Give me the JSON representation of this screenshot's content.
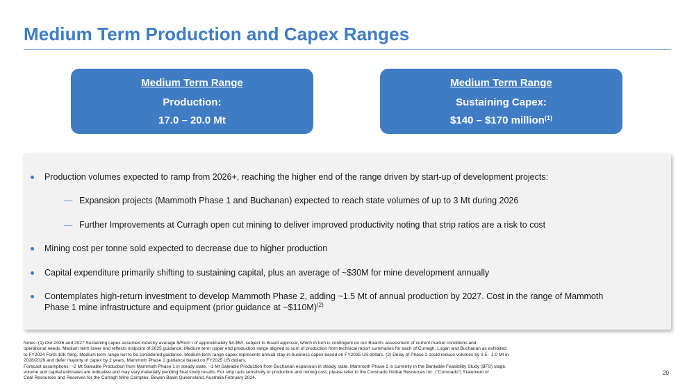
{
  "slide": {
    "title": "Medium Term Production and Capex Ranges",
    "page_number": "20"
  },
  "boxes": {
    "production": {
      "heading": "Medium Term Range",
      "label": "Production:",
      "value": "17.0 – 20.0 Mt"
    },
    "capex": {
      "heading": "Medium Term Range",
      "label": "Sustaining Capex:",
      "value": "$140 – $170 million",
      "footnote": "(1)"
    }
  },
  "bullets": {
    "b1": "Production volumes expected to ramp from 2026+, reaching the higher end of the range driven by start-up of development projects:",
    "b1_sub1": "Expansion projects (Mammoth Phase 1 and Buchanan) expected to reach state volumes of up to 3 Mt during 2026",
    "b1_sub2": "Further Improvements at Curragh open cut mining to deliver improved productivity noting that strip ratios are a risk to cost",
    "b2": "Mining cost per tonne sold expected to decrease due to higher production",
    "b3": "Capital expenditure primarily shifting to sustaining capital, plus an average of ~$30M for mine development annually",
    "b4_line1": "Contemplates high-return investment to develop Mammoth Phase 2, adding ~1.5 Mt of annual production by 2027. Cost in the range of Mammoth",
    "b4_line2": "Phase 1 mine infrastructure and equipment (prior guidance at ~$110M)",
    "b4_footnote": "(2)",
    "dash_glyph": "—"
  },
  "notes": {
    "n1": "Notes: (1) Our 2026 and 2027 Sustaining capex assumes industry average $/Rom t of approximately $4-$5/t, subject to Board approval, which in turn is contingent on our Board's assessment of current market conditions and",
    "n2": "operational needs. Medium term lower end reflects midpoint of 2025 guidance. Medium term upper end production range aligned to sum of production from technical report summaries for each of Curragh, Logan and Buchanan as exhibited",
    "n3": "to FY2024 Form 10K filing. Medium term range not to be considered guidance. Medium term range capex represents annual stay-in-business capex based on FY2025 US dollars. (2) Delay of Phase 2 could reduce volumes by 0.5 - 1.0 Mt in",
    "n4": "2028/2029 and defer majority of capex by 2 years. Mammoth Phase 1 guidance based on FY2025 US dollars.",
    "n5": "Forecast assumptions: ~2 Mt Saleable Production from Mammoth Phase 1 in steady state, ~1 Mt Saleable Production from Buchanan expansion in steady state. Mammoth Phase 2 is currently in the Bankable Feasibility Study (BFS) stage,",
    "n6": "volume and capital estimates are indicative and may vary materially pending final study results. For strip ratio sensitivity to production and mining cost, please refer to the Coronado Global Resources Inc. (\"Coronado\") Statement of",
    "n7": "Coal Resources and Reserves for the Curragh Mine Complex, Bowen Basin Queensland, Australia February 2024."
  },
  "colors": {
    "accent": "#3f7cc4",
    "panel_bg": "#f2f2f2"
  }
}
